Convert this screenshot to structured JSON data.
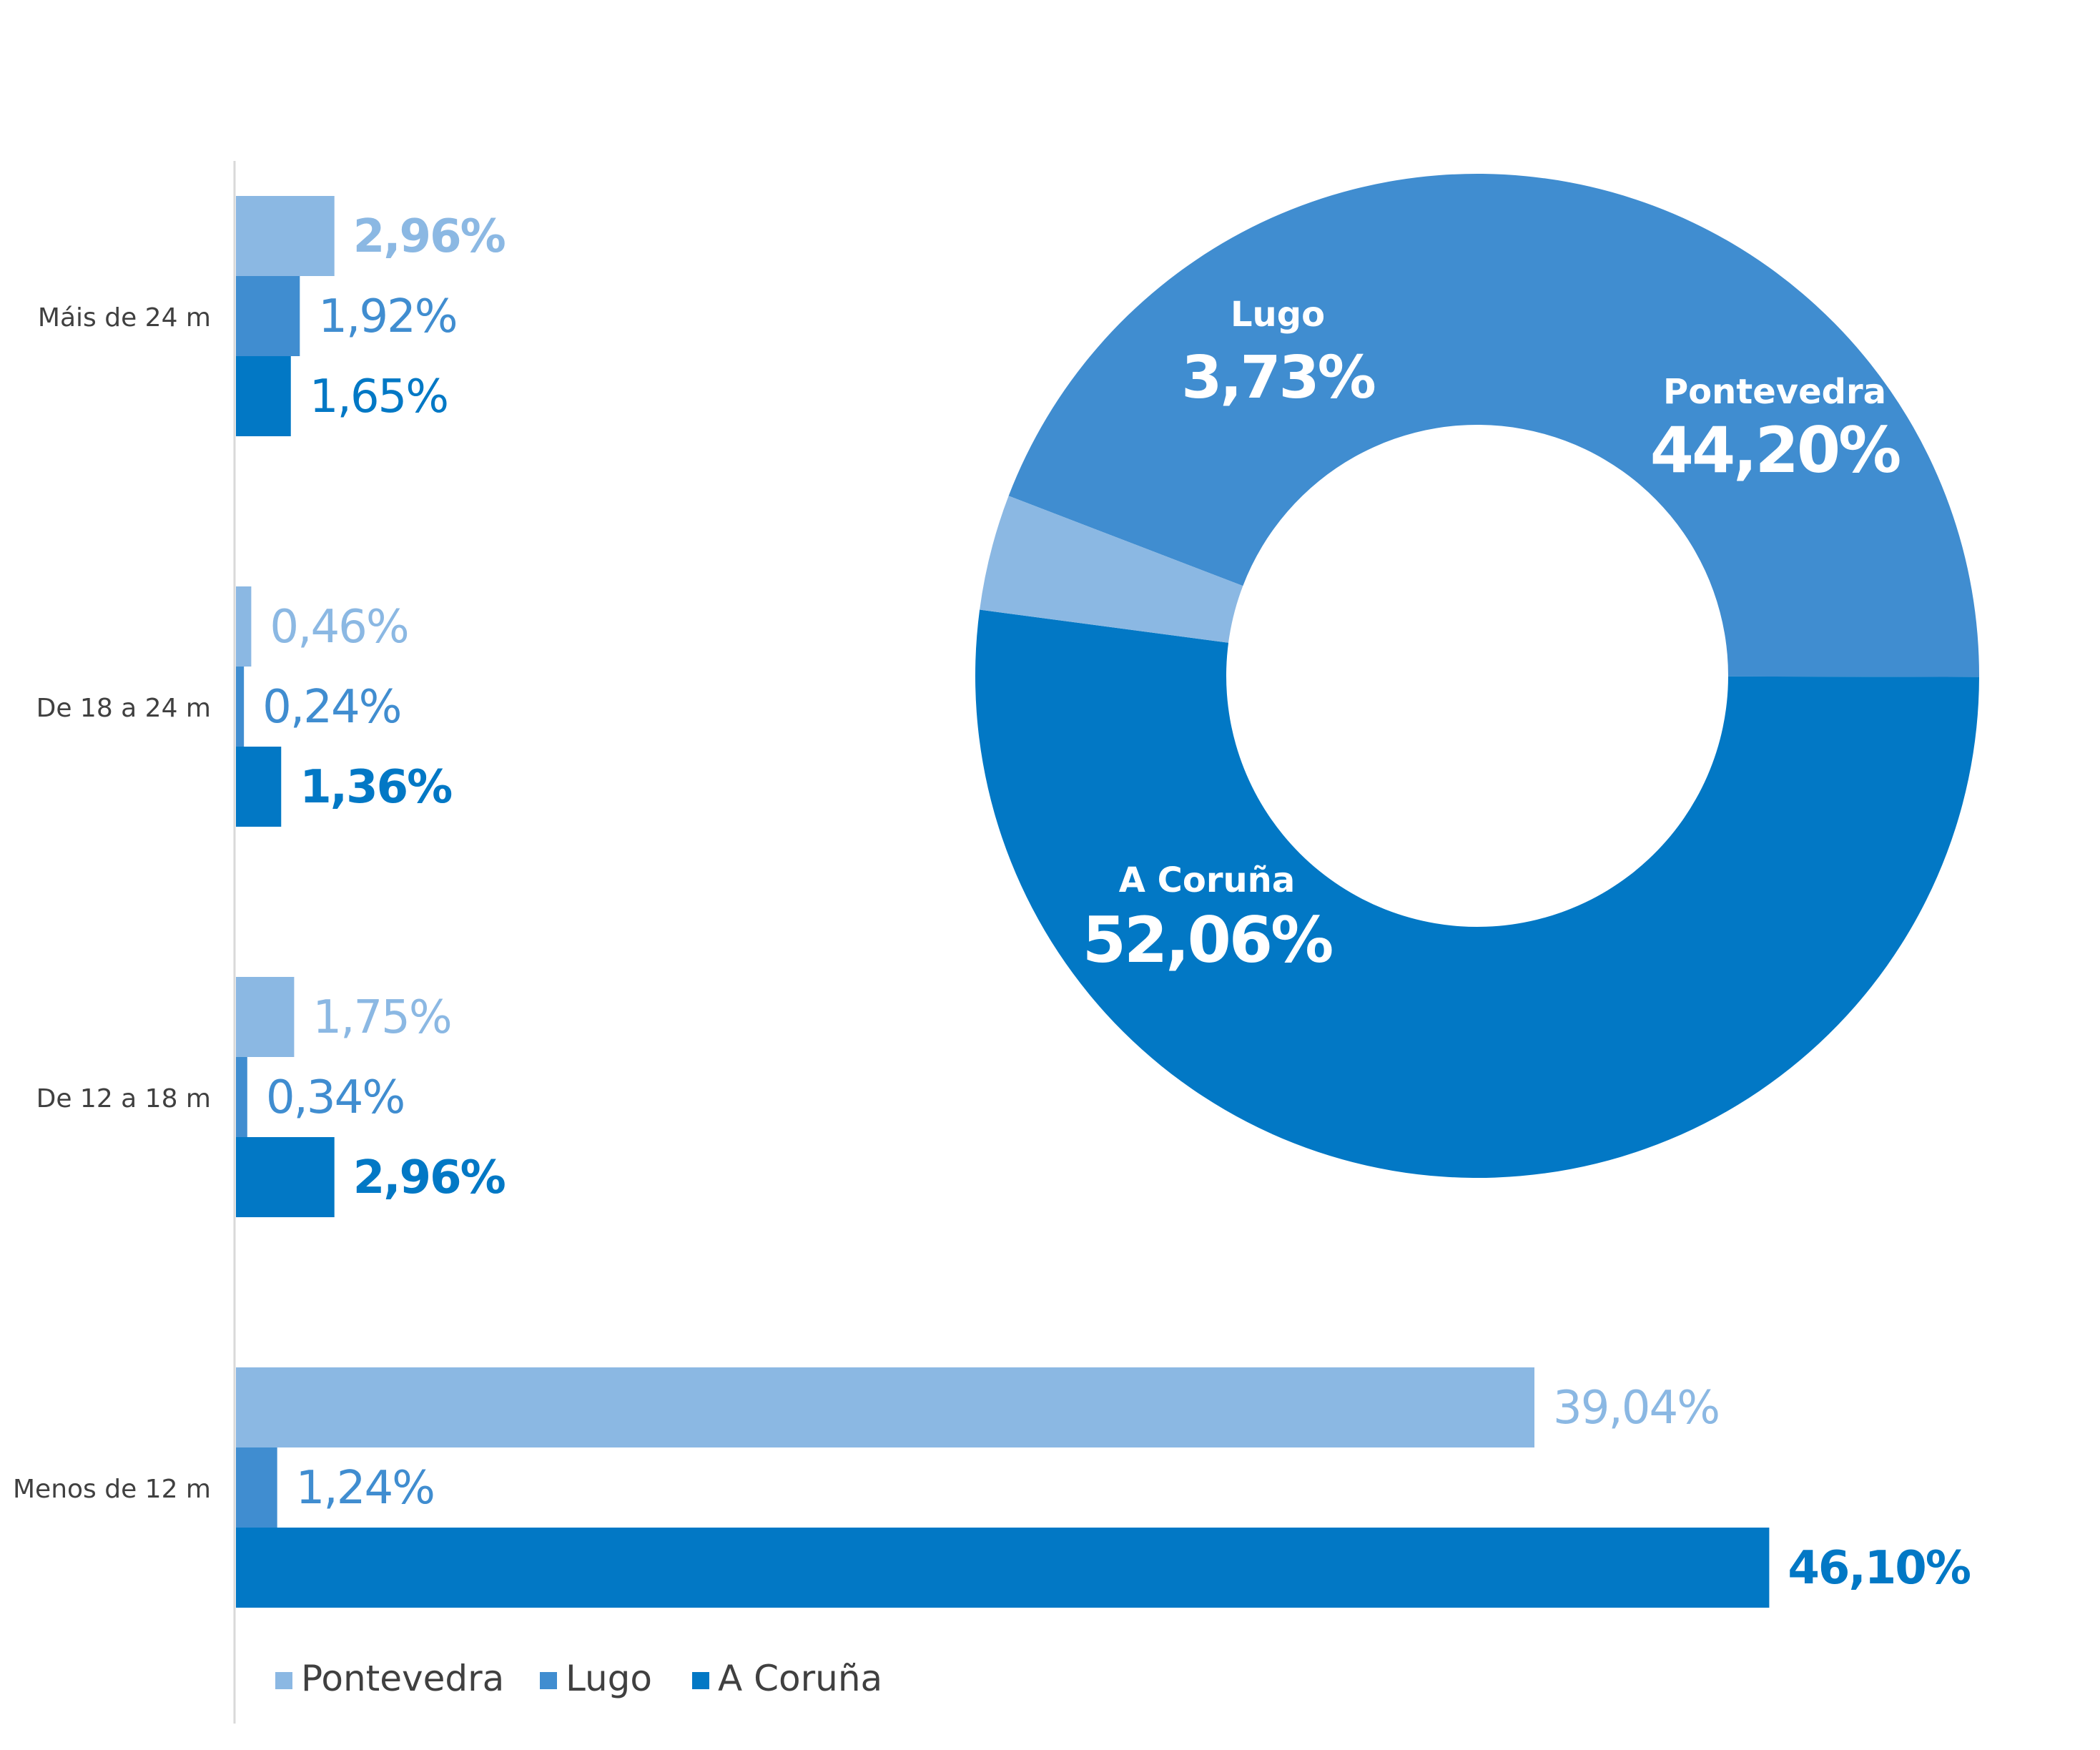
{
  "chart_data": [
    {
      "type": "bar",
      "orientation": "horizontal",
      "categories": [
        "Máis de 24 m",
        "De 18 a 24 m",
        "De 12 a 18 m",
        "Menos de 12 m"
      ],
      "series": [
        {
          "name": "Pontevedra",
          "color": "#8bb8e3",
          "values": [
            2.96,
            0.46,
            1.75,
            39.04
          ],
          "labels": [
            "2,96%",
            "0,46%",
            "1,75%",
            "39,04%"
          ],
          "label_bold": [
            true,
            false,
            false,
            false
          ]
        },
        {
          "name": "Lugo",
          "color": "#408dd0",
          "values": [
            1.92,
            0.24,
            0.34,
            1.24
          ],
          "labels": [
            "1,92%",
            "0,24%",
            "0,34%",
            "1,24%"
          ],
          "label_bold": [
            false,
            false,
            false,
            false
          ]
        },
        {
          "name": "A Coruña",
          "color": "#0278c5",
          "values": [
            1.65,
            1.36,
            2.96,
            46.1
          ],
          "labels": [
            "1,65%",
            "1,36%",
            "2,96%",
            "46,10%"
          ],
          "label_bold": [
            false,
            true,
            true,
            true
          ]
        }
      ],
      "legend": {
        "position": "bottom-left",
        "entries": [
          "Pontevedra",
          "Lugo",
          "A Coruña"
        ]
      },
      "grid": false
    },
    {
      "type": "pie",
      "variant": "donut",
      "slices": [
        {
          "name": "Pontevedra",
          "value": 44.2,
          "label": "44,20%",
          "color": "#408dd0"
        },
        {
          "name": "A Coruña",
          "value": 52.06,
          "label": "52,06%",
          "color": "#0278c5"
        },
        {
          "name": "Lugo",
          "value": 3.73,
          "label": "3,73%",
          "color": "#8bb8e3"
        }
      ]
    }
  ]
}
